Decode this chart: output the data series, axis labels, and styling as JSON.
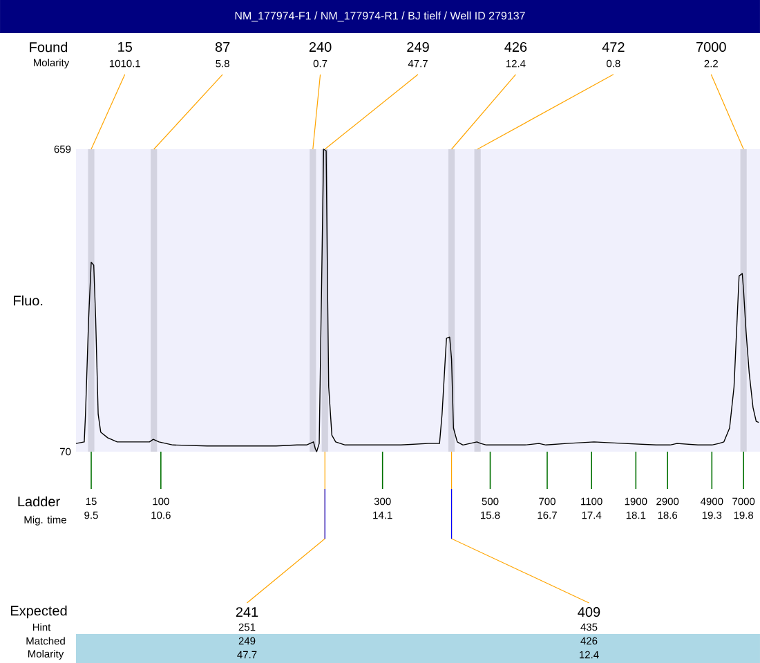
{
  "chart_data": {
    "type": "line",
    "title": "NM_177974-F1  / NM_177974-R1  / BJ tielf / Well ID  279137",
    "ylabel": "Fluo.",
    "xlabel": "Mig. time",
    "color": "#000000",
    "x": [
      9.26,
      9.39,
      9.41,
      9.46,
      9.5,
      9.54,
      9.57,
      9.61,
      9.65,
      9.76,
      9.91,
      10.13,
      10.24,
      10.42,
      10.48,
      10.57,
      10.79,
      11.33,
      12.42,
      12.75,
      12.9,
      13.01,
      13.04,
      13.06,
      13.1,
      13.14,
      13.17,
      13.21,
      13.23,
      13.25,
      13.3,
      13.36,
      13.51,
      13.95,
      14.39,
      14.82,
      15.0,
      15.04,
      15.09,
      15.11,
      15.16,
      15.19,
      15.22,
      15.28,
      15.37,
      15.48,
      15.59,
      15.65,
      15.74,
      16.35,
      16.57,
      16.68,
      17.01,
      17.44,
      17.92,
      18.42,
      18.64,
      18.75,
      19.08,
      19.3,
      19.41,
      19.49,
      19.58,
      19.65,
      19.69,
      19.73,
      19.78,
      19.8,
      19.84,
      19.89,
      19.95,
      20.0,
      20.04
    ],
    "values": [
      86,
      89,
      143,
      331,
      439,
      433,
      331,
      143,
      108,
      97,
      89,
      89,
      89,
      89,
      94,
      89,
      83,
      81,
      81,
      83,
      83,
      89,
      75,
      70,
      86,
      412,
      659,
      656,
      412,
      196,
      102,
      89,
      83,
      83,
      83,
      86,
      86,
      143,
      250,
      291,
      293,
      250,
      116,
      89,
      83,
      86,
      89,
      86,
      83,
      83,
      86,
      83,
      86,
      89,
      86,
      83,
      83,
      86,
      83,
      83,
      86,
      89,
      116,
      196,
      304,
      412,
      417,
      385,
      304,
      223,
      156,
      129,
      127
    ],
    "xlim": [
      9.26,
      20.06
    ],
    "ylim": [
      70,
      659
    ],
    "yticks": [
      70,
      659
    ],
    "xticks": [
      9.5,
      10.6,
      14.1,
      15.8,
      16.7,
      17.4,
      18.1,
      18.6,
      19.3,
      19.8
    ],
    "bands": [
      {
        "axis": "x",
        "from": 9.45,
        "to": 9.55,
        "color": "#d3d3e0"
      },
      {
        "axis": "x",
        "from": 10.44,
        "to": 10.54,
        "color": "#d3d3e0"
      },
      {
        "axis": "x",
        "from": 12.95,
        "to": 13.05,
        "color": "#d3d3e0"
      },
      {
        "axis": "x",
        "from": 13.14,
        "to": 13.24,
        "color": "#d3d3e0"
      },
      {
        "axis": "x",
        "from": 15.14,
        "to": 15.24,
        "color": "#d3d3e0"
      },
      {
        "axis": "x",
        "from": 15.55,
        "to": 15.65,
        "color": "#d3d3e0"
      },
      {
        "axis": "x",
        "from": 19.75,
        "to": 19.85,
        "color": "#d3d3e0"
      }
    ],
    "annotations": [
      "Found",
      "Molarity",
      "Ladder",
      "Expected",
      "Hint",
      "Matched",
      "Molarity",
      "15",
      "100",
      "300",
      "500",
      "700",
      "1100",
      "1900",
      "2900",
      "4900",
      "7000",
      "251",
      "249",
      "47.7",
      "435",
      "426",
      "12.4",
      "15",
      "87",
      "240",
      "249",
      "426",
      "472",
      "7000",
      {
        "text": "1010.1",
        "x": 9.5,
        "y": 659
      },
      {
        "text": "5.8",
        "x": 10.49,
        "y": 659
      },
      {
        "text": "0.7",
        "x": 13.0,
        "y": 659
      },
      {
        "text": "47.7",
        "x": 13.19,
        "y": 659
      },
      {
        "text": "12.4",
        "x": 15.19,
        "y": 659
      },
      {
        "text": "0.8",
        "x": 15.6,
        "y": 659
      },
      {
        "text": "2.2",
        "x": 19.8,
        "y": 659
      },
      {
        "text": "241",
        "x": 13.19,
        "y": 70
      },
      {
        "text": "409",
        "x": 15.19,
        "y": 70
      }
    ]
  }
}
